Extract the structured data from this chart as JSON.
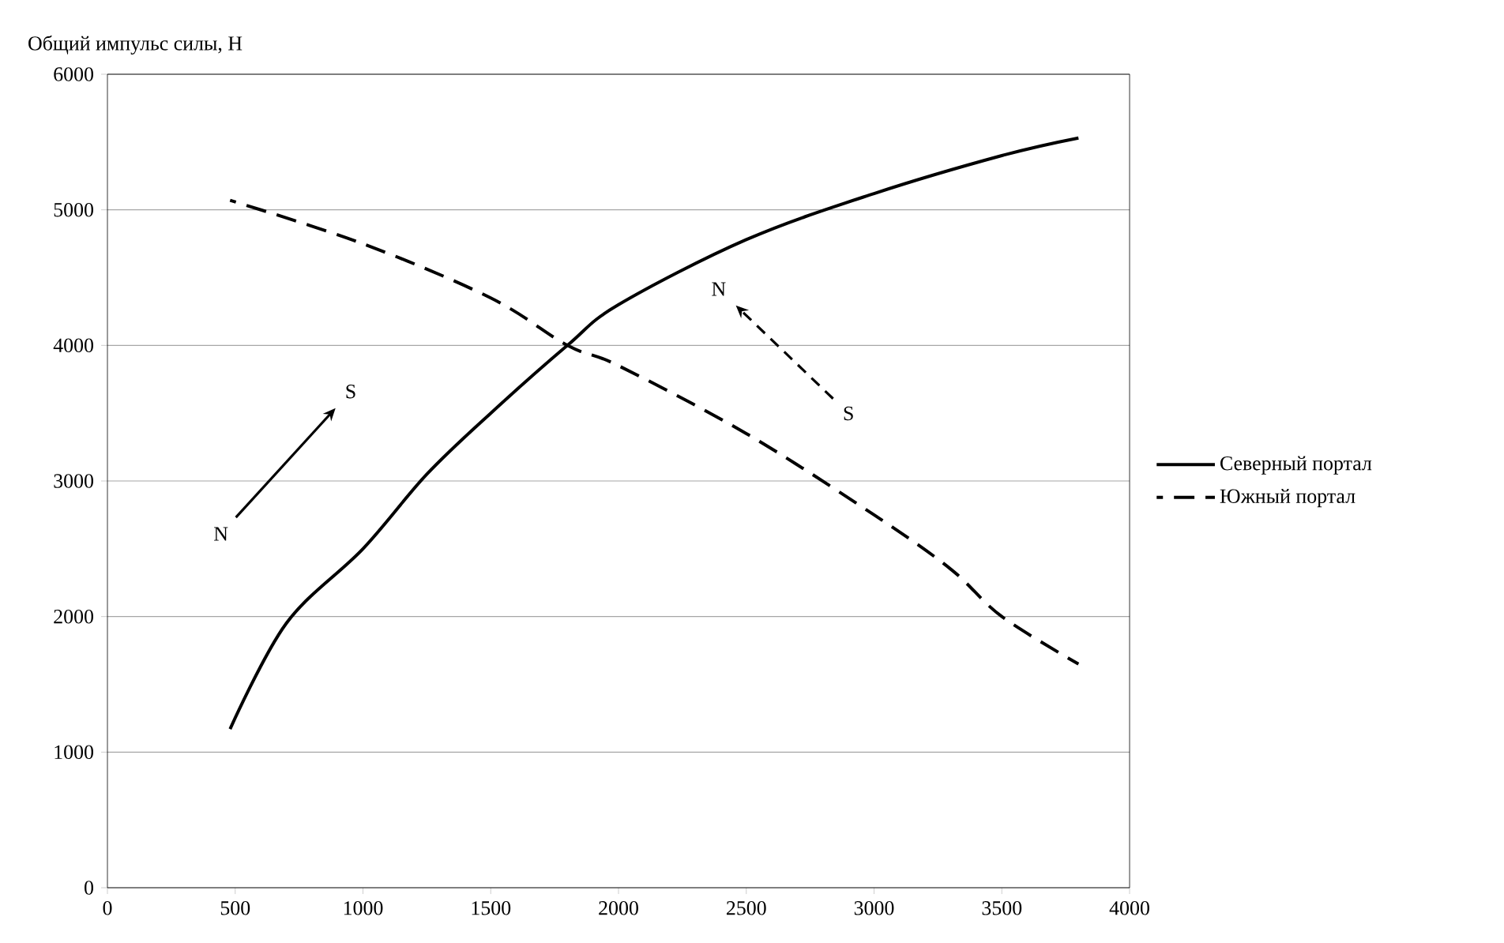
{
  "chart_data": {
    "type": "line",
    "ylabel": "Общий импульс силы, Н",
    "xlim": [
      0,
      4000
    ],
    "xticks": [
      0,
      500,
      1000,
      1500,
      2000,
      2500,
      3000,
      3500,
      4000
    ],
    "ylim": [
      0,
      6000
    ],
    "yticks": [
      0,
      1000,
      2000,
      3000,
      4000,
      5000,
      6000
    ],
    "grid": "y",
    "legend": "right",
    "series": [
      {
        "name": "Северный портал",
        "color": "#000000",
        "line_style": "solid",
        "x": [
          480,
          700,
          1000,
          1250,
          1500,
          1800,
          2000,
          2500,
          3000,
          3500,
          3800
        ],
        "values": [
          1170,
          1950,
          2500,
          3050,
          3500,
          4000,
          4300,
          4780,
          5120,
          5400,
          5530
        ]
      },
      {
        "name": "Южный портал",
        "color": "#000000",
        "line_style": "dashed",
        "x": [
          480,
          1000,
          1500,
          1800,
          2000,
          2500,
          3000,
          3300,
          3500,
          3800
        ],
        "values": [
          5070,
          4750,
          4350,
          4000,
          3850,
          3350,
          2750,
          2350,
          2000,
          1650
        ]
      }
    ],
    "annotations": [
      "N",
      "S",
      "S",
      "N"
    ]
  }
}
